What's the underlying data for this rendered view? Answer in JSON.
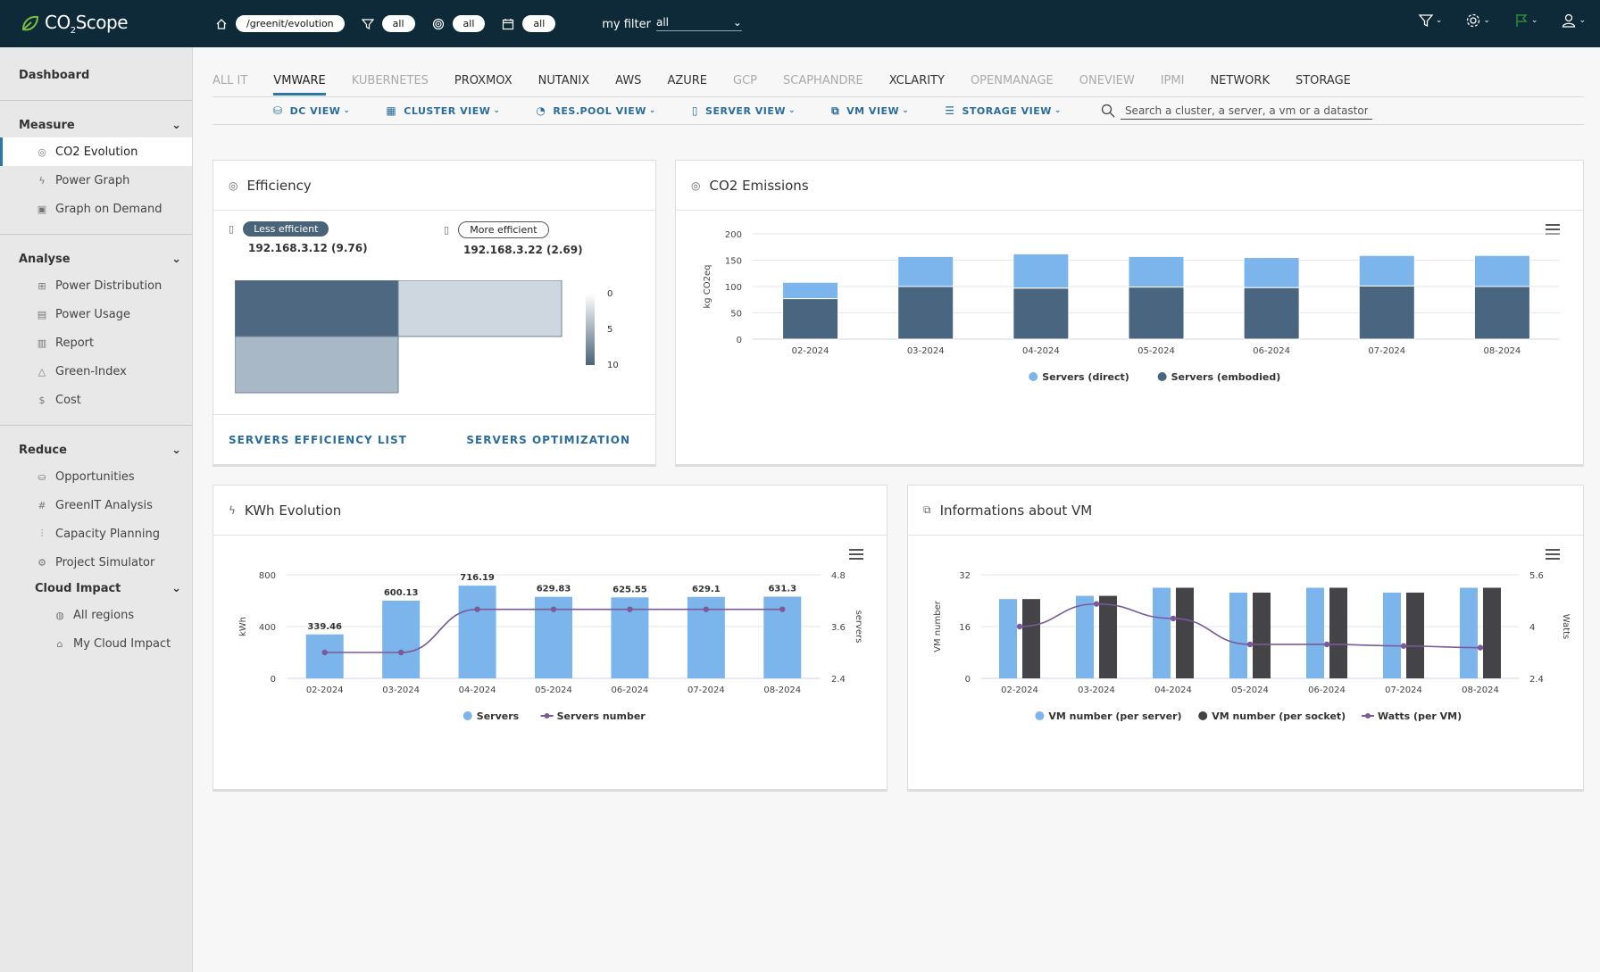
{
  "app": {
    "logo_text_a": "CO",
    "logo_sub": "2",
    "logo_text_b": "Scope"
  },
  "topbar": {
    "path": "/greenit/evolution",
    "filter1": "all",
    "filter2": "all",
    "filter3": "all",
    "myfilter_label": "my filter",
    "myfilter_value": "all"
  },
  "sidebar": {
    "dashboard": "Dashboard",
    "measure": {
      "title": "Measure",
      "items": [
        {
          "label": "CO2 Evolution",
          "icon": "co2-icon"
        },
        {
          "label": "Power Graph",
          "icon": "bolt-icon"
        },
        {
          "label": "Graph on Demand",
          "icon": "chart-icon"
        }
      ]
    },
    "analyse": {
      "title": "Analyse",
      "items": [
        {
          "label": "Power Distribution",
          "icon": "grid-icon"
        },
        {
          "label": "Power Usage",
          "icon": "calendar-icon"
        },
        {
          "label": "Report",
          "icon": "report-icon"
        },
        {
          "label": "Green-Index",
          "icon": "triangle-icon"
        },
        {
          "label": "Cost",
          "icon": "dollar-icon"
        }
      ]
    },
    "reduce": {
      "title": "Reduce",
      "items": [
        {
          "label": "Opportunities",
          "icon": "opportunity-icon"
        },
        {
          "label": "GreenIT Analysis",
          "icon": "hash-icon"
        },
        {
          "label": "Capacity Planning",
          "icon": "sliders-icon"
        },
        {
          "label": "Project Simulator",
          "icon": "simulator-icon"
        }
      ]
    },
    "cloud": {
      "title": "Cloud Impact",
      "items": [
        {
          "label": "All regions",
          "icon": "globe-icon"
        },
        {
          "label": "My Cloud Impact",
          "icon": "cloud-home-icon"
        }
      ]
    }
  },
  "tabs": [
    {
      "label": "ALL IT",
      "state": "dim"
    },
    {
      "label": "VMWARE",
      "state": "active"
    },
    {
      "label": "KUBERNETES",
      "state": "dim"
    },
    {
      "label": "PROXMOX",
      "state": "normal"
    },
    {
      "label": "NUTANIX",
      "state": "normal"
    },
    {
      "label": "AWS",
      "state": "normal"
    },
    {
      "label": "AZURE",
      "state": "normal"
    },
    {
      "label": "GCP",
      "state": "dim"
    },
    {
      "label": "SCAPHANDRE",
      "state": "dim"
    },
    {
      "label": "XCLARITY",
      "state": "normal"
    },
    {
      "label": "OPENMANAGE",
      "state": "dim"
    },
    {
      "label": "ONEVIEW",
      "state": "dim"
    },
    {
      "label": "IPMI",
      "state": "dim"
    },
    {
      "label": "NETWORK",
      "state": "normal"
    },
    {
      "label": "STORAGE",
      "state": "normal"
    }
  ],
  "views": [
    {
      "label": "DC VIEW",
      "icon": "dc-icon"
    },
    {
      "label": "CLUSTER VIEW",
      "icon": "cluster-icon"
    },
    {
      "label": "RES.POOL VIEW",
      "icon": "respool-icon"
    },
    {
      "label": "SERVER VIEW",
      "icon": "server-icon"
    },
    {
      "label": "VM VIEW",
      "icon": "vm-icon"
    },
    {
      "label": "STORAGE VIEW",
      "icon": "storage-icon"
    }
  ],
  "search": {
    "placeholder": "Search a cluster, a server, a vm or a datastore"
  },
  "efficiency": {
    "title": "Efficiency",
    "less_label": "Less efficient",
    "less_value": "192.168.3.12 (9.76)",
    "more_label": "More efficient",
    "more_value": "192.168.3.22 (2.69)",
    "scale": [
      "0",
      "5",
      "10"
    ],
    "link_list": "SERVERS EFFICIENCY LIST",
    "link_opt": "SERVERS OPTIMIZATION"
  },
  "chart_data": [
    {
      "id": "co2",
      "title": "CO2 Emissions",
      "type": "bar",
      "stacked": true,
      "categories": [
        "02-2024",
        "03-2024",
        "04-2024",
        "05-2024",
        "06-2024",
        "07-2024",
        "08-2024"
      ],
      "series": [
        {
          "name": "Servers (direct)",
          "color": "#7cb5ec",
          "values": [
            31,
            57,
            65,
            58,
            57,
            58,
            59
          ]
        },
        {
          "name": "Servers (embodied)",
          "color": "#4a6580",
          "values": [
            77,
            100,
            97,
            99,
            98,
            101,
            100
          ]
        }
      ],
      "ylabel": "kg CO2eq",
      "yticks": [
        "0",
        "50",
        "100",
        "150",
        "200"
      ],
      "ylim": [
        0,
        200
      ]
    },
    {
      "id": "kwh",
      "title": "KWh Evolution",
      "type": "bar",
      "categories": [
        "02-2024",
        "03-2024",
        "04-2024",
        "05-2024",
        "06-2024",
        "07-2024",
        "08-2024"
      ],
      "series": [
        {
          "name": "Servers",
          "color": "#7cb5ec",
          "values": [
            339.46,
            600.13,
            716.19,
            629.83,
            625.55,
            629.1,
            631.3
          ],
          "labels": [
            "339.46",
            "600.13",
            "716.19",
            "629.83",
            "625.55",
            "629.1",
            "631.3"
          ]
        },
        {
          "name": "Servers number",
          "color": "#7a5a9a",
          "type": "line",
          "axis": "right",
          "values": [
            3.0,
            3.0,
            4.0,
            4.0,
            4.0,
            4.0,
            4.0
          ]
        }
      ],
      "ylabel": "kWh",
      "yticks": [
        "0",
        "400",
        "800"
      ],
      "ylim": [
        0,
        800
      ],
      "y2label": "servers",
      "y2ticks": [
        "2.4",
        "3.6",
        "4.8"
      ],
      "y2lim": [
        2.4,
        4.8
      ]
    },
    {
      "id": "vm",
      "title": "Informations about VM",
      "type": "bar",
      "categories": [
        "02-2024",
        "03-2024",
        "04-2024",
        "05-2024",
        "06-2024",
        "07-2024",
        "08-2024"
      ],
      "series": [
        {
          "name": "VM number (per server)",
          "color": "#7cb5ec",
          "values": [
            24.5,
            25.5,
            28,
            26.5,
            28,
            26.5,
            28
          ]
        },
        {
          "name": "VM number (per socket)",
          "color": "#434348",
          "values": [
            24.5,
            25.5,
            28,
            26.5,
            28,
            26.5,
            28
          ]
        },
        {
          "name": "Watts (per VM)",
          "color": "#7a5a9a",
          "type": "line",
          "axis": "right",
          "values": [
            4.0,
            4.7,
            4.25,
            3.45,
            3.45,
            3.4,
            3.35
          ]
        }
      ],
      "ylabel": "VM number",
      "yticks": [
        "0",
        "16",
        "32"
      ],
      "ylim": [
        0,
        32
      ],
      "y2label": "Watts",
      "y2ticks": [
        "2.4",
        "4",
        "5.6"
      ],
      "y2lim": [
        2.4,
        5.6
      ]
    }
  ],
  "colors": {
    "topbar": "#0e2a38",
    "accent": "#2a78a8",
    "bar_light": "#7cb5ec",
    "bar_dark": "#4a6580"
  }
}
